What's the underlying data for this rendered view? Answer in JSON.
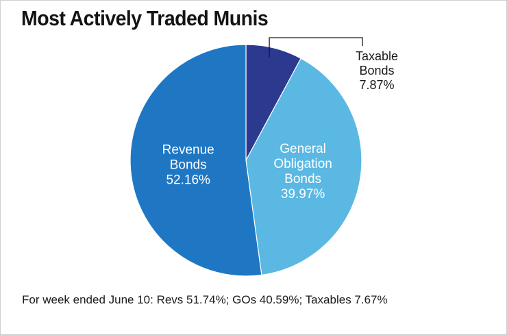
{
  "title": "Most Actively Traded Munis",
  "footnote": "For week ended June 10: Revs 51.74%; GOs 40.59%; Taxables 7.67%",
  "chart_data": {
    "type": "pie",
    "title": "Most Actively Traded Munis",
    "slices": [
      {
        "name": "Taxable Bonds",
        "label_lines": [
          "Taxable",
          "Bonds"
        ],
        "value": 7.87,
        "value_label": "7.87%",
        "color": "#2b3a8f",
        "label_color": "#1a1a1a",
        "label_position": "outside-top-right"
      },
      {
        "name": "General Obligation Bonds",
        "label_lines": [
          "General",
          "Obligation",
          "Bonds"
        ],
        "value": 39.97,
        "value_label": "39.97%",
        "color": "#5ab8e3",
        "label_color": "#ffffff",
        "label_position": "inside"
      },
      {
        "name": "Revenue Bonds",
        "label_lines": [
          "Revenue",
          "Bonds"
        ],
        "value": 52.16,
        "value_label": "52.16%",
        "color": "#1f77c4",
        "label_color": "#ffffff",
        "label_position": "inside"
      }
    ],
    "start": "12 o'clock",
    "direction": "clockwise",
    "legend": "none",
    "footnote": "For week ended June 10: Revs 51.74%; GOs 40.59%; Taxables 7.67%"
  }
}
